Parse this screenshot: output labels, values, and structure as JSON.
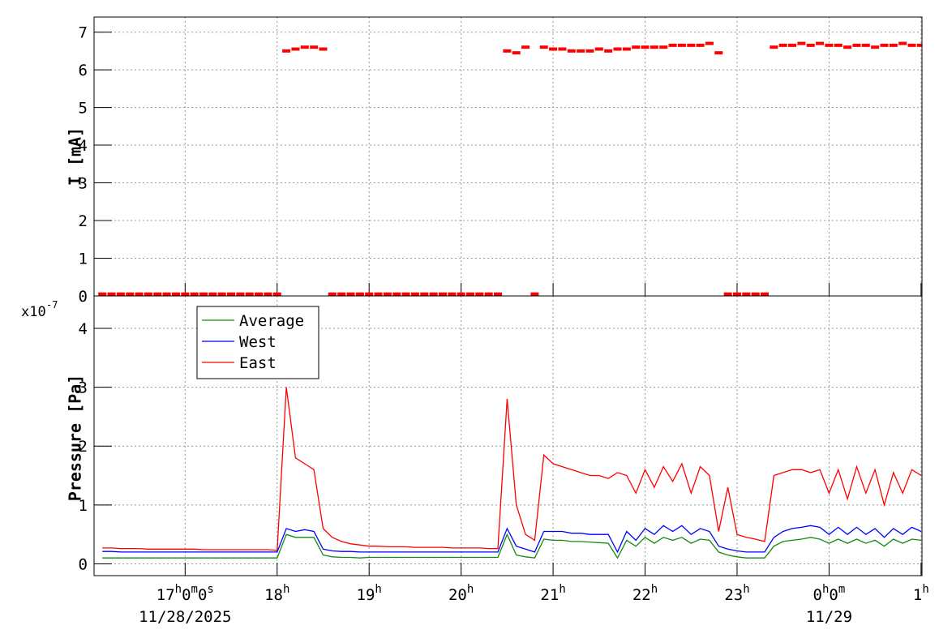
{
  "chart_data": [
    {
      "type": "scatter",
      "ylabel": "I [mA]",
      "x": [
        16.1,
        16.2,
        16.3,
        16.4,
        16.5,
        16.6,
        16.7,
        16.8,
        16.9,
        17.0,
        17.1,
        17.2,
        17.3,
        17.4,
        17.5,
        17.6,
        17.7,
        17.8,
        17.9,
        18.0,
        18.1,
        18.2,
        18.3,
        18.4,
        18.5,
        18.6,
        18.7,
        18.8,
        18.9,
        19.0,
        19.1,
        19.2,
        19.3,
        19.4,
        19.5,
        19.6,
        19.7,
        19.8,
        19.9,
        20.0,
        20.1,
        20.2,
        20.3,
        20.4,
        20.5,
        20.6,
        20.7,
        20.8,
        20.9,
        21.0,
        21.1,
        21.2,
        21.3,
        21.4,
        21.5,
        21.6,
        21.7,
        21.8,
        21.9,
        22.0,
        22.1,
        22.2,
        22.3,
        22.4,
        22.5,
        22.6,
        22.7,
        22.8,
        22.9,
        23.0,
        23.1,
        23.2,
        23.3,
        23.4,
        23.5,
        23.6,
        23.7,
        23.8,
        23.9,
        24.0,
        24.1,
        24.2,
        24.3,
        24.4,
        24.5,
        24.6,
        24.7,
        24.8,
        24.9,
        25.0
      ],
      "series": [
        {
          "color": "#ff0000",
          "values": [
            0.05,
            0.05,
            0.05,
            0.05,
            0.05,
            0.05,
            0.05,
            0.05,
            0.05,
            0.05,
            0.05,
            0.05,
            0.05,
            0.05,
            0.05,
            0.05,
            0.05,
            0.05,
            0.05,
            0.05,
            6.5,
            6.55,
            6.6,
            6.6,
            6.55,
            0.05,
            0.05,
            0.05,
            0.05,
            0.05,
            0.05,
            0.05,
            0.05,
            0.05,
            0.05,
            0.05,
            0.05,
            0.05,
            0.05,
            0.05,
            0.05,
            0.05,
            0.05,
            0.05,
            6.5,
            6.45,
            6.6,
            0.05,
            6.6,
            6.55,
            6.55,
            6.5,
            6.5,
            6.5,
            6.55,
            6.5,
            6.55,
            6.55,
            6.6,
            6.6,
            6.6,
            6.6,
            6.65,
            6.65,
            6.65,
            6.65,
            6.7,
            6.45,
            0.05,
            0.05,
            0.05,
            0.05,
            0.05,
            6.6,
            6.65,
            6.65,
            6.7,
            6.65,
            6.7,
            6.65,
            6.65,
            6.6,
            6.65,
            6.65,
            6.6,
            6.65,
            6.65,
            6.7,
            6.65,
            6.65
          ]
        }
      ],
      "xlim": [
        16.01,
        25.01
      ],
      "xticks": [
        17,
        18,
        19,
        20,
        21,
        22,
        23,
        24,
        25
      ],
      "ylim": [
        0,
        7.4
      ],
      "yticks": [
        0,
        1,
        2,
        3,
        4,
        5,
        6,
        7
      ],
      "grid": true
    },
    {
      "type": "line",
      "ylabel": "Pressure [Pa]",
      "axis_multiplier": "x10",
      "axis_multiplier_exponent": "-7",
      "x": [
        16.1,
        16.2,
        16.3,
        16.4,
        16.5,
        16.6,
        16.7,
        16.8,
        16.9,
        17.0,
        17.1,
        17.2,
        17.3,
        17.4,
        17.5,
        17.6,
        17.7,
        17.8,
        17.9,
        18.0,
        18.1,
        18.2,
        18.3,
        18.4,
        18.5,
        18.6,
        18.7,
        18.8,
        18.9,
        19.0,
        19.1,
        19.2,
        19.3,
        19.4,
        19.5,
        19.6,
        19.7,
        19.8,
        19.9,
        20.0,
        20.1,
        20.2,
        20.3,
        20.4,
        20.5,
        20.6,
        20.7,
        20.8,
        20.9,
        21.0,
        21.1,
        21.2,
        21.3,
        21.4,
        21.5,
        21.6,
        21.7,
        21.8,
        21.9,
        22.0,
        22.1,
        22.2,
        22.3,
        22.4,
        22.5,
        22.6,
        22.7,
        22.8,
        22.9,
        23.0,
        23.1,
        23.2,
        23.3,
        23.4,
        23.5,
        23.6,
        23.7,
        23.8,
        23.9,
        24.0,
        24.1,
        24.2,
        24.3,
        24.4,
        24.5,
        24.6,
        24.7,
        24.8,
        24.9,
        25.0
      ],
      "series": [
        {
          "name": "Average",
          "color": "#128a12",
          "values": [
            0.1,
            0.1,
            0.1,
            0.1,
            0.1,
            0.1,
            0.1,
            0.1,
            0.1,
            0.1,
            0.1,
            0.1,
            0.1,
            0.1,
            0.1,
            0.1,
            0.1,
            0.1,
            0.1,
            0.1,
            0.5,
            0.45,
            0.45,
            0.45,
            0.15,
            0.12,
            0.11,
            0.11,
            0.1,
            0.11,
            0.11,
            0.11,
            0.11,
            0.11,
            0.11,
            0.11,
            0.11,
            0.11,
            0.11,
            0.11,
            0.11,
            0.11,
            0.11,
            0.11,
            0.5,
            0.15,
            0.12,
            0.1,
            0.42,
            0.4,
            0.4,
            0.38,
            0.38,
            0.37,
            0.36,
            0.35,
            0.1,
            0.4,
            0.3,
            0.45,
            0.35,
            0.45,
            0.4,
            0.45,
            0.35,
            0.42,
            0.4,
            0.2,
            0.15,
            0.12,
            0.1,
            0.1,
            0.1,
            0.3,
            0.38,
            0.4,
            0.42,
            0.45,
            0.42,
            0.35,
            0.42,
            0.35,
            0.42,
            0.35,
            0.4,
            0.3,
            0.42,
            0.35,
            0.42,
            0.4
          ]
        },
        {
          "name": "West",
          "color": "#0000ff",
          "values": [
            0.21,
            0.21,
            0.2,
            0.2,
            0.2,
            0.2,
            0.2,
            0.2,
            0.2,
            0.2,
            0.2,
            0.2,
            0.2,
            0.2,
            0.2,
            0.2,
            0.2,
            0.2,
            0.2,
            0.2,
            0.6,
            0.55,
            0.58,
            0.55,
            0.25,
            0.22,
            0.21,
            0.21,
            0.2,
            0.2,
            0.2,
            0.2,
            0.2,
            0.2,
            0.2,
            0.2,
            0.2,
            0.2,
            0.2,
            0.2,
            0.2,
            0.2,
            0.2,
            0.2,
            0.6,
            0.3,
            0.25,
            0.2,
            0.55,
            0.55,
            0.55,
            0.52,
            0.52,
            0.5,
            0.5,
            0.5,
            0.2,
            0.55,
            0.4,
            0.6,
            0.5,
            0.65,
            0.55,
            0.65,
            0.5,
            0.6,
            0.55,
            0.3,
            0.25,
            0.22,
            0.2,
            0.2,
            0.2,
            0.45,
            0.55,
            0.6,
            0.62,
            0.65,
            0.62,
            0.5,
            0.62,
            0.5,
            0.62,
            0.5,
            0.6,
            0.45,
            0.6,
            0.5,
            0.62,
            0.55
          ]
        },
        {
          "name": "East",
          "color": "#ff0000",
          "values": [
            0.27,
            0.27,
            0.26,
            0.26,
            0.26,
            0.25,
            0.25,
            0.25,
            0.25,
            0.25,
            0.25,
            0.24,
            0.24,
            0.24,
            0.24,
            0.24,
            0.24,
            0.24,
            0.24,
            0.23,
            3.0,
            1.8,
            1.7,
            1.6,
            0.6,
            0.45,
            0.38,
            0.34,
            0.32,
            0.3,
            0.3,
            0.29,
            0.29,
            0.29,
            0.28,
            0.28,
            0.28,
            0.28,
            0.27,
            0.27,
            0.27,
            0.27,
            0.26,
            0.26,
            2.8,
            1.0,
            0.5,
            0.4,
            1.85,
            1.7,
            1.65,
            1.6,
            1.55,
            1.5,
            1.5,
            1.45,
            1.55,
            1.5,
            1.2,
            1.6,
            1.3,
            1.65,
            1.4,
            1.7,
            1.2,
            1.65,
            1.5,
            0.55,
            1.3,
            0.5,
            0.45,
            0.42,
            0.38,
            1.5,
            1.55,
            1.6,
            1.6,
            1.55,
            1.6,
            1.2,
            1.6,
            1.1,
            1.65,
            1.2,
            1.6,
            1.0,
            1.55,
            1.2,
            1.6,
            1.5
          ]
        }
      ],
      "xlim": [
        16.01,
        25.01
      ],
      "xticks": [
        {
          "value": 17,
          "label": "17h0m0s"
        },
        {
          "value": 18,
          "label": "18h"
        },
        {
          "value": 19,
          "label": "19h"
        },
        {
          "value": 20,
          "label": "20h"
        },
        {
          "value": 21,
          "label": "21h"
        },
        {
          "value": 22,
          "label": "22h"
        },
        {
          "value": 23,
          "label": "23h"
        },
        {
          "value": 24,
          "label": "0h0m"
        },
        {
          "value": 25,
          "label": "1h"
        }
      ],
      "date_labels": [
        {
          "value": 17,
          "label": "11/28/2025"
        },
        {
          "value": 24,
          "label": "11/29"
        }
      ],
      "ylim": [
        -0.2,
        4.55
      ],
      "yticks": [
        0,
        1,
        2,
        3,
        4
      ],
      "grid": true,
      "legend": "upper-left"
    }
  ]
}
